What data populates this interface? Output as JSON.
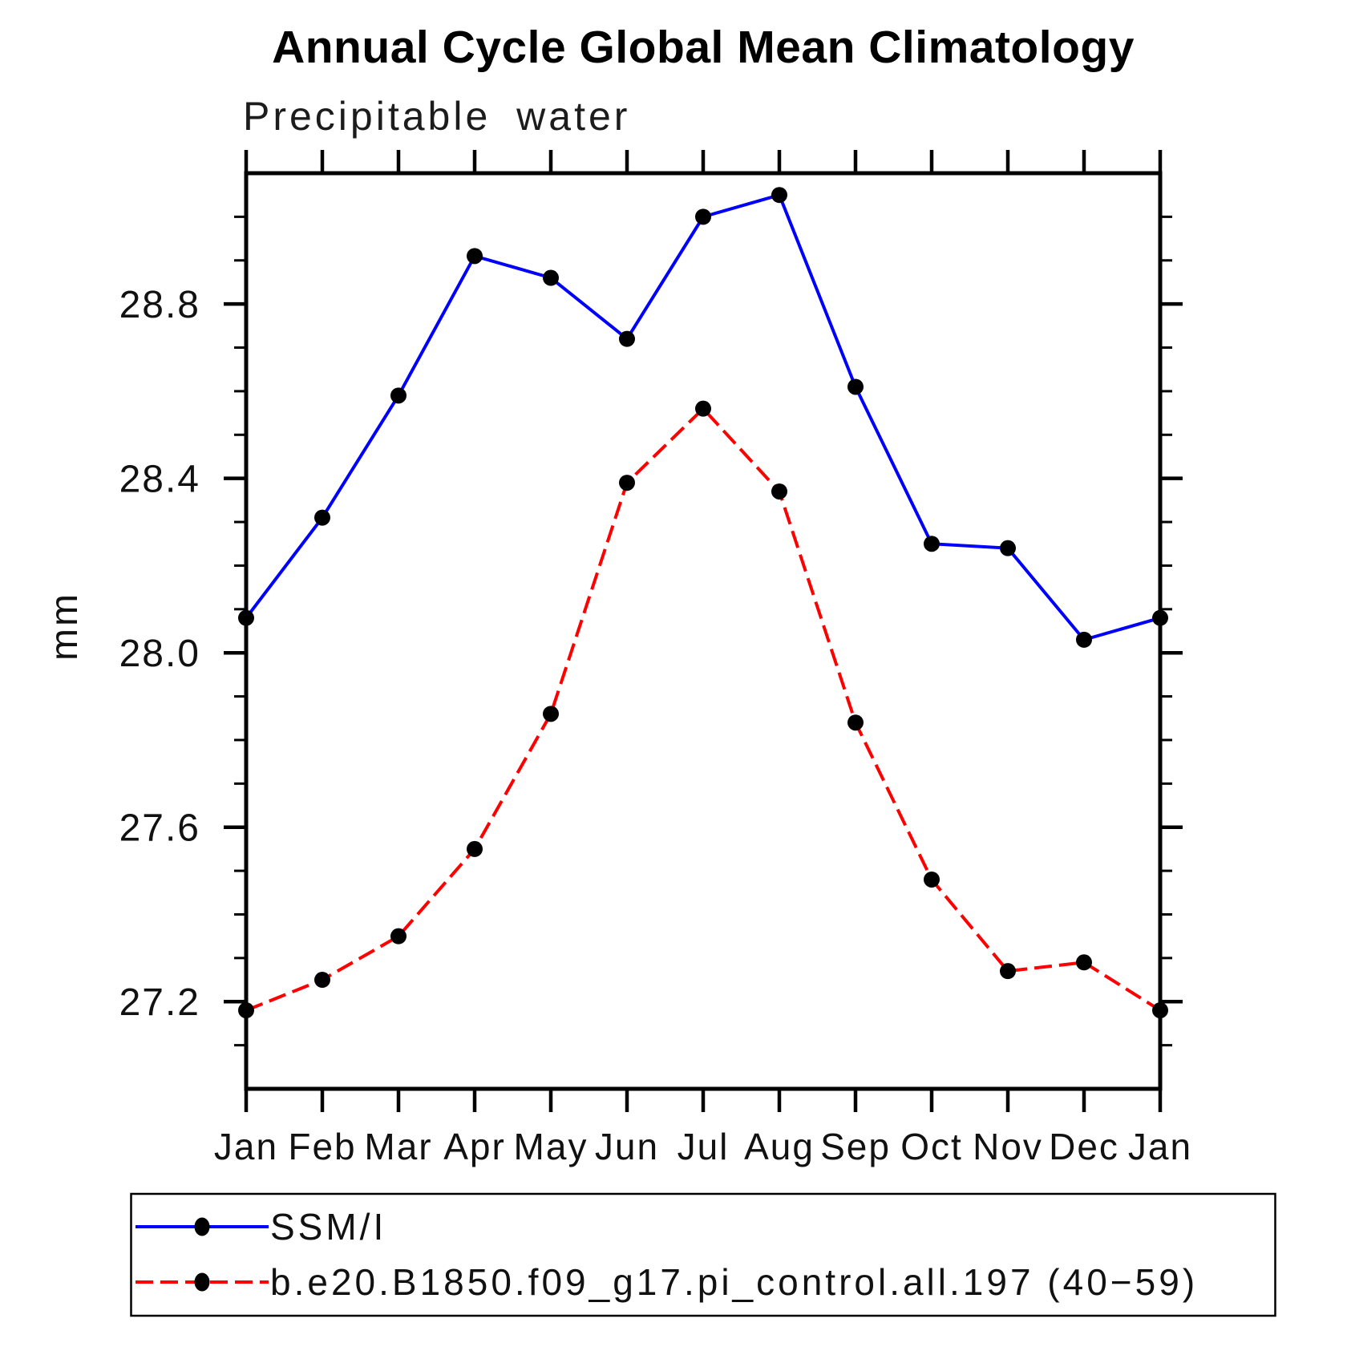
{
  "header": {
    "title": "Annual Cycle Global Mean Climatology",
    "subtitle": "Precipitable water"
  },
  "axes": {
    "y_label": "mm",
    "y_min": 27.0,
    "y_max": 29.1,
    "y_minor_step": 0.1,
    "y_major_ticks": [
      27.2,
      27.6,
      28.0,
      28.4,
      28.8
    ],
    "y_tick_labels": [
      "27.2",
      "27.6",
      "28.0",
      "28.4",
      "28.8"
    ],
    "x_tick_labels": [
      "Jan",
      "Feb",
      "Mar",
      "Apr",
      "May",
      "Jun",
      "Jul",
      "Aug",
      "Sep",
      "Oct",
      "Nov",
      "Dec",
      "Jan"
    ]
  },
  "chart_data": {
    "type": "line",
    "title": "Annual Cycle Global Mean Climatology",
    "subtitle": "Precipitable water",
    "xlabel": "",
    "ylabel": "mm",
    "ylim": [
      27.0,
      29.1
    ],
    "grid": false,
    "legend_position": "bottom",
    "x": [
      "Jan",
      "Feb",
      "Mar",
      "Apr",
      "May",
      "Jun",
      "Jul",
      "Aug",
      "Sep",
      "Oct",
      "Nov",
      "Dec",
      "Jan"
    ],
    "series": [
      {
        "name": "SSM/I",
        "color": "#0000ff",
        "line_style": "solid",
        "marker": "filled-circle",
        "values": [
          28.08,
          28.31,
          28.59,
          28.91,
          28.86,
          28.72,
          29.0,
          29.05,
          28.61,
          28.25,
          28.24,
          28.03,
          28.08
        ]
      },
      {
        "name": "b.e20.B1850.f09_g17.pi_control.all.197 (40−59)",
        "color": "#ff0000",
        "line_style": "dashed",
        "marker": "filled-circle",
        "values": [
          27.18,
          27.25,
          27.35,
          27.55,
          27.86,
          28.39,
          28.56,
          28.37,
          27.84,
          27.48,
          27.27,
          27.29,
          27.18
        ]
      }
    ]
  },
  "legend": {
    "entries": [
      {
        "label": "SSM/I",
        "color": "#0000ff",
        "line_style": "solid"
      },
      {
        "label": "b.e20.B1850.f09_g17.pi_control.all.197 (40−59)",
        "color": "#ff0000",
        "line_style": "dashed"
      }
    ]
  },
  "colors": {
    "ssmi": "#0000ff",
    "model": "#ff0000",
    "axis": "#000000",
    "background": "#ffffff"
  }
}
